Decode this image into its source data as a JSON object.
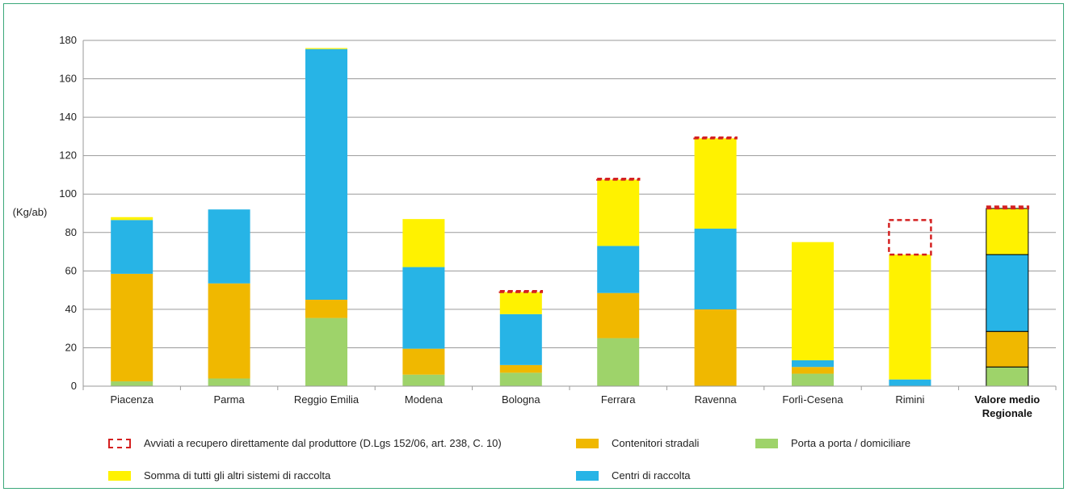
{
  "chart_data": {
    "type": "bar",
    "stacked": true,
    "ylabel": "(Kg/ab)",
    "ylim": [
      0,
      180
    ],
    "yticks": [
      0,
      20,
      40,
      60,
      80,
      100,
      120,
      140,
      160,
      180
    ],
    "grid": true,
    "categories": [
      "Piacenza",
      "Parma",
      "Reggio Emilia",
      "Modena",
      "Bologna",
      "Ferrara",
      "Ravenna",
      "Forlì-Cesena",
      "Rimini",
      "Valore medio Regionale"
    ],
    "series": [
      {
        "name": "Porta a porta / domiciliare",
        "color": "#9ed36a",
        "values": [
          2.5,
          4,
          35.5,
          6,
          7,
          25,
          0,
          6.5,
          0,
          10
        ]
      },
      {
        "name": "Contenitori stradali",
        "color": "#f0b800",
        "values": [
          56,
          49.5,
          9.5,
          13.5,
          4,
          23.5,
          40,
          3.5,
          0,
          18.5
        ]
      },
      {
        "name": "Centri di raccolta",
        "color": "#27b4e6",
        "values": [
          28,
          38.5,
          130.5,
          42.5,
          26.5,
          24.5,
          42,
          3.5,
          3.5,
          40
        ]
      },
      {
        "name": "Somma di tutti gli altri sistemi di raccolta",
        "color": "#fff200",
        "values": [
          1.5,
          0,
          0.5,
          25,
          11.5,
          34.5,
          47,
          61.5,
          65,
          24
        ]
      },
      {
        "name": "Avviati a recupero direttamente dal produttore (D.Lgs 152/06, art. 238, C. 10)",
        "color": "#d42020",
        "style": "dashed",
        "values": [
          0,
          0,
          0,
          0,
          0.5,
          0.5,
          0.5,
          0,
          18,
          1
        ]
      }
    ],
    "legend": [
      {
        "label": "Avviati a recupero direttamente dal produttore (D.Lgs 152/06, art. 238, C. 10)",
        "swatch": "dashed",
        "color": "#d42020"
      },
      {
        "label": "Contenitori stradali",
        "swatch": "fill",
        "color": "#f0b800"
      },
      {
        "label": "Porta a porta / domiciliare",
        "swatch": "fill",
        "color": "#9ed36a"
      },
      {
        "label": "Somma di tutti gli altri sistemi di raccolta",
        "swatch": "fill",
        "color": "#fff200"
      },
      {
        "label": "Centri di raccolta",
        "swatch": "fill",
        "color": "#27b4e6"
      }
    ],
    "highlight_category": "Valore medio Regionale"
  }
}
